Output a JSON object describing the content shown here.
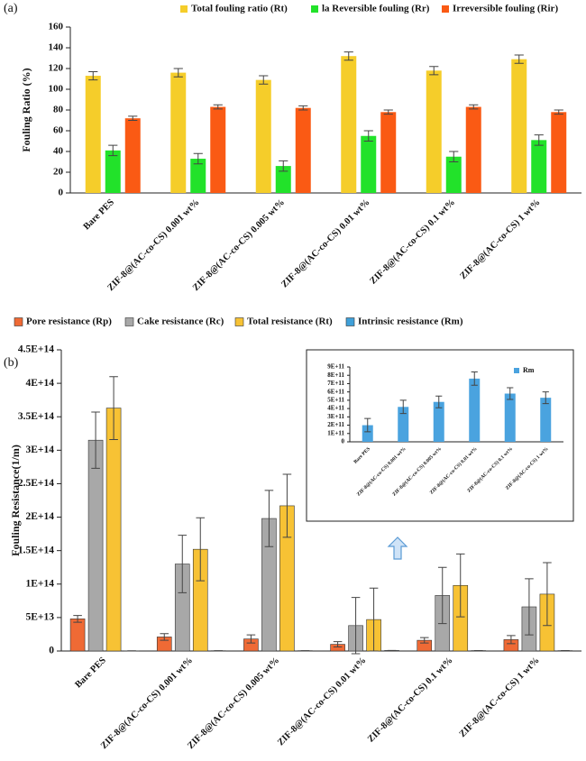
{
  "chart_data": [
    {
      "type": "bar",
      "panel_label": "(a)",
      "y_label": "Fouling Ratio (%)",
      "categories": [
        "Bare PES",
        "ZIF-8@(AC-co-CS) 0.001 wt%",
        "ZIF-8@(AC-co-CS) 0.005 wt%",
        "ZIF-8@(AC-co-CS) 0.01 wt%",
        "ZIF-8@(AC-co-CS) 0.1 wt%",
        "ZIF-8@(AC-co-CS) 1 wt%"
      ],
      "series": [
        {
          "name": "Total fouling ratio (Rt)",
          "color": "#f5cd2a",
          "values": [
            113,
            116,
            109,
            132,
            118,
            129
          ],
          "errors": [
            4,
            4,
            4,
            4,
            4,
            4
          ]
        },
        {
          "name": "la Reversible fouling (Rr)",
          "color": "#22e22a",
          "values": [
            41,
            33,
            26,
            55,
            35,
            51
          ],
          "errors": [
            5,
            5,
            5,
            5,
            5,
            5
          ]
        },
        {
          "name": "Irreversible fouling (Rir)",
          "color": "#fa5a14",
          "values": [
            72,
            83,
            82,
            78,
            83,
            78
          ],
          "errors": [
            2,
            2,
            2,
            2,
            2,
            2
          ]
        }
      ],
      "ylim": [
        0,
        160
      ],
      "yticks": [
        0,
        20,
        40,
        60,
        80,
        100,
        120,
        140,
        160
      ],
      "grid": false
    },
    {
      "type": "bar",
      "panel_label": "(b)",
      "y_label": "Fouling Resistance(1/m)",
      "categories": [
        "Bare PES",
        "ZIF-8@(AC-co-CS) 0.001 wt%",
        "ZIF-8@(AC-co-CS) 0.005 wt%",
        "ZIF-8@(AC-co-CS) 0.01 wt%",
        "ZIF-8@(AC-co-CS) 0.1 wt%",
        "ZIF-8@(AC-co-CS) 1 wt%"
      ],
      "series": [
        {
          "name": "Pore resistance (Rp)",
          "color": "#ef6a35",
          "values": [
            48000000000000.0,
            21000000000000.0,
            18000000000000.0,
            10000000000000.0,
            16000000000000.0,
            17000000000000.0
          ],
          "errors": [
            5000000000000.0,
            5000000000000.0,
            6000000000000.0,
            4000000000000.0,
            4000000000000.0,
            6000000000000.0
          ]
        },
        {
          "name": "Cake resistance (Rc)",
          "color": "#a8a8a8",
          "values": [
            315000000000000.0,
            130000000000000.0,
            198000000000000.0,
            38000000000000.0,
            83000000000000.0,
            66000000000000.0
          ],
          "errors": [
            42000000000000.0,
            43000000000000.0,
            42000000000000.0,
            42000000000000.0,
            42000000000000.0,
            42000000000000.0
          ]
        },
        {
          "name": "Total resistance (Rt)",
          "color": "#f7c234",
          "values": [
            363000000000000.0,
            152000000000000.0,
            217000000000000.0,
            47000000000000.0,
            98000000000000.0,
            85000000000000.0
          ],
          "errors": [
            47000000000000.0,
            47000000000000.0,
            47000000000000.0,
            47000000000000.0,
            47000000000000.0,
            47000000000000.0
          ]
        },
        {
          "name": "Intrinsic resistance (Rm)",
          "color": "#3fa0d9",
          "values": [
            200000000000.0,
            420000000000.0,
            480000000000.0,
            760000000000.0,
            580000000000.0,
            530000000000.0
          ],
          "errors": [
            80000000000.0,
            80000000000.0,
            70000000000.0,
            80000000000.0,
            70000000000.0,
            70000000000.0
          ]
        }
      ],
      "ylim": [
        0,
        450000000000000.0
      ],
      "yticks": [
        0,
        {
          "value": 50000000000000.0,
          "label": "5E+13"
        },
        {
          "value": 100000000000000.0,
          "label": "1E+14"
        },
        {
          "value": 150000000000000.0,
          "label": "1.5E+14"
        },
        {
          "value": 200000000000000.0,
          "label": "2E+14"
        },
        {
          "value": 250000000000000.0,
          "label": "2.5E+14"
        },
        {
          "value": 300000000000000.0,
          "label": "3E+14"
        },
        {
          "value": 350000000000000.0,
          "label": "3.5E+14"
        },
        {
          "value": 400000000000000.0,
          "label": "4E+14"
        },
        {
          "value": 450000000000000.0,
          "label": "4.5E+14"
        }
      ],
      "grid": false
    },
    {
      "type": "bar",
      "categories": [
        "Bare PES",
        "ZIF-8@(AC-co-CS) 0.001 wt%",
        "ZIF-8@(AC-co-CS) 0.005 wt%",
        "ZIF-8@(AC-co-CS) 0.01 wt%",
        "ZIF-8@(AC-co-CS) 0.1 wt%",
        "ZIF-8@(AC-co-CS) 1 wt%"
      ],
      "series": [
        {
          "name": "Rm",
          "color": "#4aa3df",
          "values": [
            200000000000.0,
            420000000000.0,
            480000000000.0,
            760000000000.0,
            580000000000.0,
            530000000000.0
          ],
          "errors": [
            80000000000.0,
            80000000000.0,
            70000000000.0,
            80000000000.0,
            70000000000.0,
            70000000000.0
          ]
        }
      ],
      "ylim": [
        0,
        900000000000.0
      ],
      "yticks": [
        0,
        {
          "value": 100000000000.0,
          "label": "1E+11"
        },
        {
          "value": 200000000000.0,
          "label": "2E+11"
        },
        {
          "value": 300000000000.0,
          "label": "3E+11"
        },
        {
          "value": 400000000000.0,
          "label": "4E+11"
        },
        {
          "value": 500000000000.0,
          "label": "5E+11"
        },
        {
          "value": 600000000000.0,
          "label": "6E+11"
        },
        {
          "value": 700000000000.0,
          "label": "7E+11"
        },
        {
          "value": 800000000000.0,
          "label": "8E+11"
        },
        {
          "value": 900000000000.0,
          "label": "9E+11"
        }
      ],
      "grid": false
    }
  ]
}
